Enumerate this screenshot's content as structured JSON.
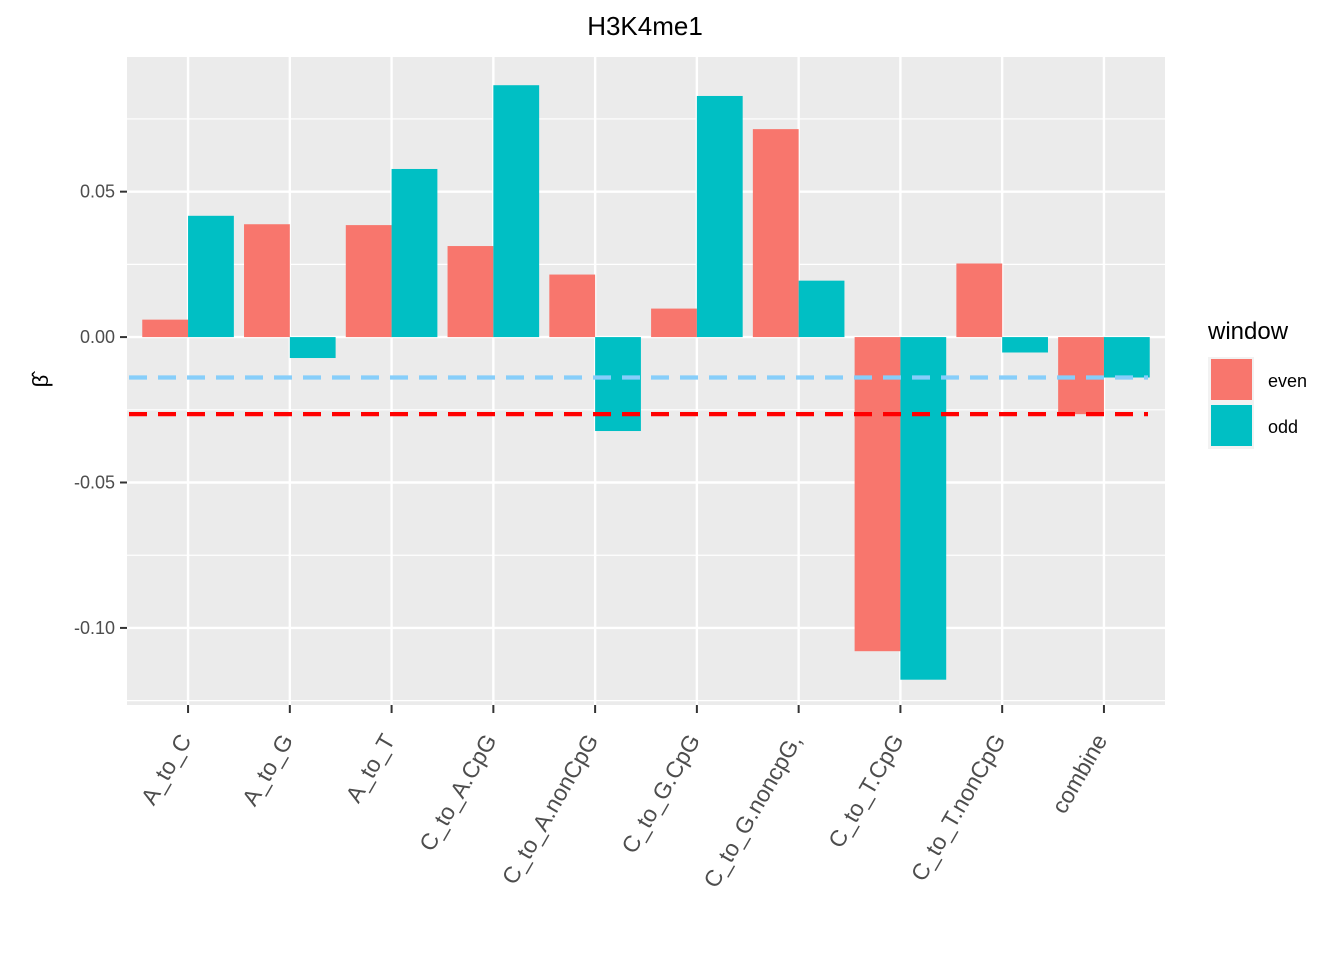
{
  "chart_data": {
    "type": "bar",
    "title": "H3K4me1",
    "ylabel": "β̂",
    "xlabel": "",
    "categories": [
      "A_to_C",
      "A_to_G",
      "A_to_T",
      "C_to_A.CpG",
      "C_to_A.nonCpG",
      "C_to_G.CpG",
      "C_to_G.noncpG,",
      "C_to_T.CpG",
      "C_to_T.nonCpG",
      "combine"
    ],
    "series": [
      {
        "name": "even",
        "color": "#F8766D",
        "values": [
          0.006,
          0.0388,
          0.0385,
          0.0313,
          0.0215,
          0.0098,
          0.0715,
          -0.108,
          0.0253,
          -0.0265
        ]
      },
      {
        "name": "odd",
        "color": "#00BFC4",
        "values": [
          0.0417,
          -0.0072,
          0.0578,
          0.0866,
          -0.0323,
          0.0829,
          0.0194,
          -0.1178,
          -0.0053,
          -0.0139
        ]
      }
    ],
    "ylim": [
      -0.1265,
      0.0963
    ],
    "yticks": [
      0.05,
      0.0,
      -0.05,
      -0.1
    ],
    "ytick_labels": [
      "0.05",
      "0.00",
      "-0.05",
      "-0.10"
    ],
    "hlines": [
      {
        "y": -0.0139,
        "color": "#87CEFA",
        "style": "dashed"
      },
      {
        "y": -0.0265,
        "color": "#FF0000",
        "style": "dashed"
      }
    ],
    "legend": {
      "title": "window",
      "position": "right"
    },
    "grid": true,
    "panel_background": "#EBEBEB"
  }
}
